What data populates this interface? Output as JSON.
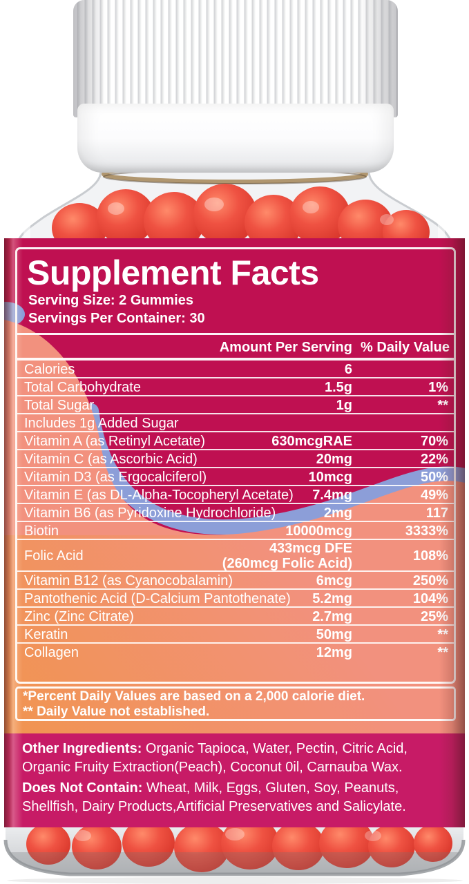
{
  "product_photo": {
    "description": "White-capped clear jar filled with red gummies, pink and coral supplement facts label",
    "colors": {
      "label_crimson": "#bf1051",
      "label_salmon": "#f2917e",
      "label_orange": "#f0953f",
      "wave_blue": "#8c9ed8",
      "bottom_pink": "#c71b66",
      "gummy_red": "#e5473e",
      "cap_white": "#ffffff"
    }
  },
  "supplement_facts": {
    "title": "Supplement Facts",
    "serving_size": "Serving Size: 2 Gummies",
    "servings_per_container": "Servings Per Container: 30",
    "column_headers": {
      "amount": "Amount Per Serving",
      "daily_value": "% Daily Value"
    },
    "rows": [
      {
        "name": "Calories",
        "amount": "6",
        "dv": ""
      },
      {
        "name": "Total Carbohydrate",
        "amount": "1.5g",
        "dv": "1%"
      },
      {
        "name": "Total Sugar",
        "amount": "1g",
        "dv": "**"
      },
      {
        "name": "Includes 1g Added Sugar",
        "amount": "",
        "dv": ""
      },
      {
        "name": "Vitamin A (as Retinyl Acetate)",
        "amount": "630mcgRAE",
        "dv": "70%"
      },
      {
        "name": "Vitamin C (as Ascorbic Acid)",
        "amount": "20mg",
        "dv": "22%"
      },
      {
        "name": "Vitamin D3 (as Ergocalciferol)",
        "amount": "10mcg",
        "dv": "50%"
      },
      {
        "name": "Vitamin E (as DL-Alpha-Tocopheryl Acetate)",
        "amount": "7.4mg",
        "dv": "49%"
      },
      {
        "name": "Vitamin B6 (as Pyridoxine Hydrochloride)",
        "amount": "2mg",
        "dv": "117"
      },
      {
        "name": "Biotin",
        "amount": "10000mcg",
        "dv": "3333%"
      },
      {
        "name": "Folic Acid",
        "amount": "433mcg DFE",
        "amount2": "(260mcg Folic Acid)",
        "dv": "108%"
      },
      {
        "name": "Vitamin B12 (as Cyanocobalamin)",
        "amount": "6mcg",
        "dv": "250%"
      },
      {
        "name": "Pantothenic Acid (D-Calcium Pantothenate)",
        "amount": "5.2mg",
        "dv": "104%"
      },
      {
        "name": "Zinc (Zinc Citrate)",
        "amount": "2.7mg",
        "dv": "25%"
      },
      {
        "name": "Keratin",
        "amount": "50mg",
        "dv": "**"
      },
      {
        "name": "Collagen",
        "amount": "12mg",
        "dv": "**"
      }
    ],
    "footnotes": [
      "*Percent Daily Values are based on a 2,000 calorie diet.",
      "** Daily Value not established."
    ],
    "other_ingredients": {
      "label": "Other Ingredients:",
      "text": " Organic Tapioca, Water, Pectin, Citric Acid, Organic Fruity Extraction(Peach), Coconut 0il, Carnauba Wax."
    },
    "does_not_contain": {
      "label": "Does Not Contain:",
      "text": " Wheat, Milk, Eggs, Gluten, Soy, Peanuts, Shellfish, Dairy Products,Artificial Preservatives and Salicylate."
    }
  }
}
